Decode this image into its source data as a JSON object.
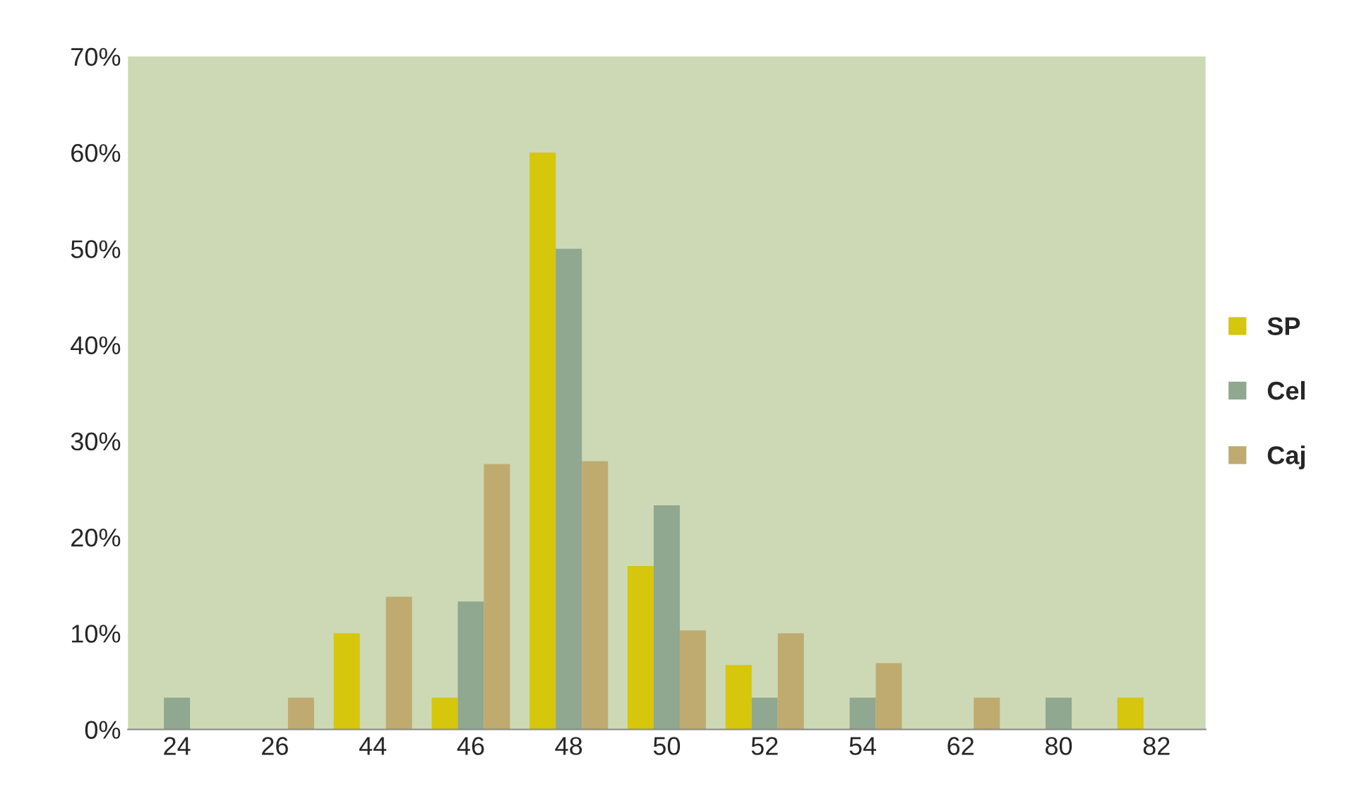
{
  "chart_data": {
    "type": "bar",
    "categories": [
      "24",
      "26",
      "44",
      "46",
      "48",
      "50",
      "52",
      "54",
      "62",
      "80",
      "82"
    ],
    "series": [
      {
        "name": "SP",
        "color": "#d6c60c",
        "values": [
          0,
          0,
          10,
          3.3,
          60,
          17,
          6.7,
          0,
          0,
          0,
          3.3
        ]
      },
      {
        "name": "Cel",
        "color": "#8fa88f",
        "values": [
          3.3,
          0,
          0,
          13.3,
          50,
          23.3,
          3.3,
          3.3,
          0,
          3.3,
          0
        ]
      },
      {
        "name": "Caj",
        "color": "#bfab6f",
        "values": [
          0,
          3.3,
          13.8,
          27.6,
          27.9,
          10.3,
          10,
          6.9,
          3.3,
          0,
          0
        ]
      }
    ],
    "ylim": [
      0,
      70
    ],
    "yticks": [
      {
        "value": 0,
        "label": "0%"
      },
      {
        "value": 10,
        "label": "10%"
      },
      {
        "value": 20,
        "label": "20%"
      },
      {
        "value": 30,
        "label": "30%"
      },
      {
        "value": 40,
        "label": "40%"
      },
      {
        "value": 50,
        "label": "50%"
      },
      {
        "value": 60,
        "label": "60%"
      },
      {
        "value": 70,
        "label": "70%"
      }
    ],
    "grid": false,
    "legend": "right"
  }
}
